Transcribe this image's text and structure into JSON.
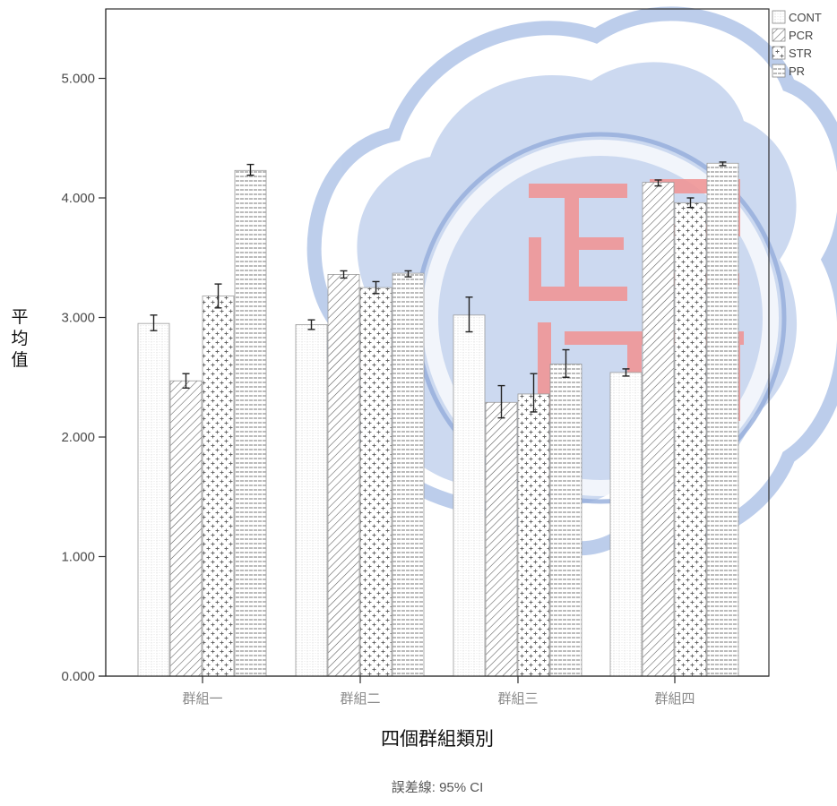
{
  "chart_data": {
    "type": "bar",
    "categories": [
      "群組一",
      "群組二",
      "群組三",
      "群組四"
    ],
    "series": [
      {
        "name": "CONT",
        "values": [
          2.95,
          2.94,
          3.02,
          2.54
        ],
        "ci": [
          [
            2.89,
            3.02
          ],
          [
            2.9,
            2.98
          ],
          [
            2.88,
            3.17
          ],
          [
            2.51,
            2.57
          ]
        ]
      },
      {
        "name": "PCR",
        "values": [
          2.47,
          3.36,
          2.29,
          4.13
        ],
        "ci": [
          [
            2.41,
            2.53
          ],
          [
            3.33,
            3.39
          ],
          [
            2.16,
            2.43
          ],
          [
            4.1,
            4.15
          ]
        ]
      },
      {
        "name": "STR",
        "values": [
          3.18,
          3.25,
          2.36,
          3.96
        ],
        "ci": [
          [
            3.08,
            3.28
          ],
          [
            3.2,
            3.3
          ],
          [
            2.21,
            2.53
          ],
          [
            3.92,
            4.0
          ]
        ]
      },
      {
        "name": "PR",
        "values": [
          4.23,
          3.37,
          2.61,
          4.29
        ],
        "ci": [
          [
            4.19,
            4.28
          ],
          [
            3.34,
            3.39
          ],
          [
            2.5,
            2.73
          ],
          [
            4.27,
            4.3
          ]
        ]
      }
    ],
    "xlabel": "四個群組類別",
    "ylabel": "平均值",
    "ylim": [
      0,
      5.5
    ],
    "yticks": [
      "0.000",
      "1.000",
      "2.000",
      "3.000",
      "4.000",
      "5.000"
    ],
    "legend_position": "top-right",
    "error_bar_note": "誤差線: 95% CI",
    "grid": false
  },
  "colors": {
    "CONT": "#e6e6e6",
    "PCR": "#5a5a5a",
    "STR": "#6f6f6f",
    "PR": "#707070",
    "axis": "#333333",
    "watermark_blue": "#3f6fc4",
    "watermark_red": "#f27474"
  }
}
